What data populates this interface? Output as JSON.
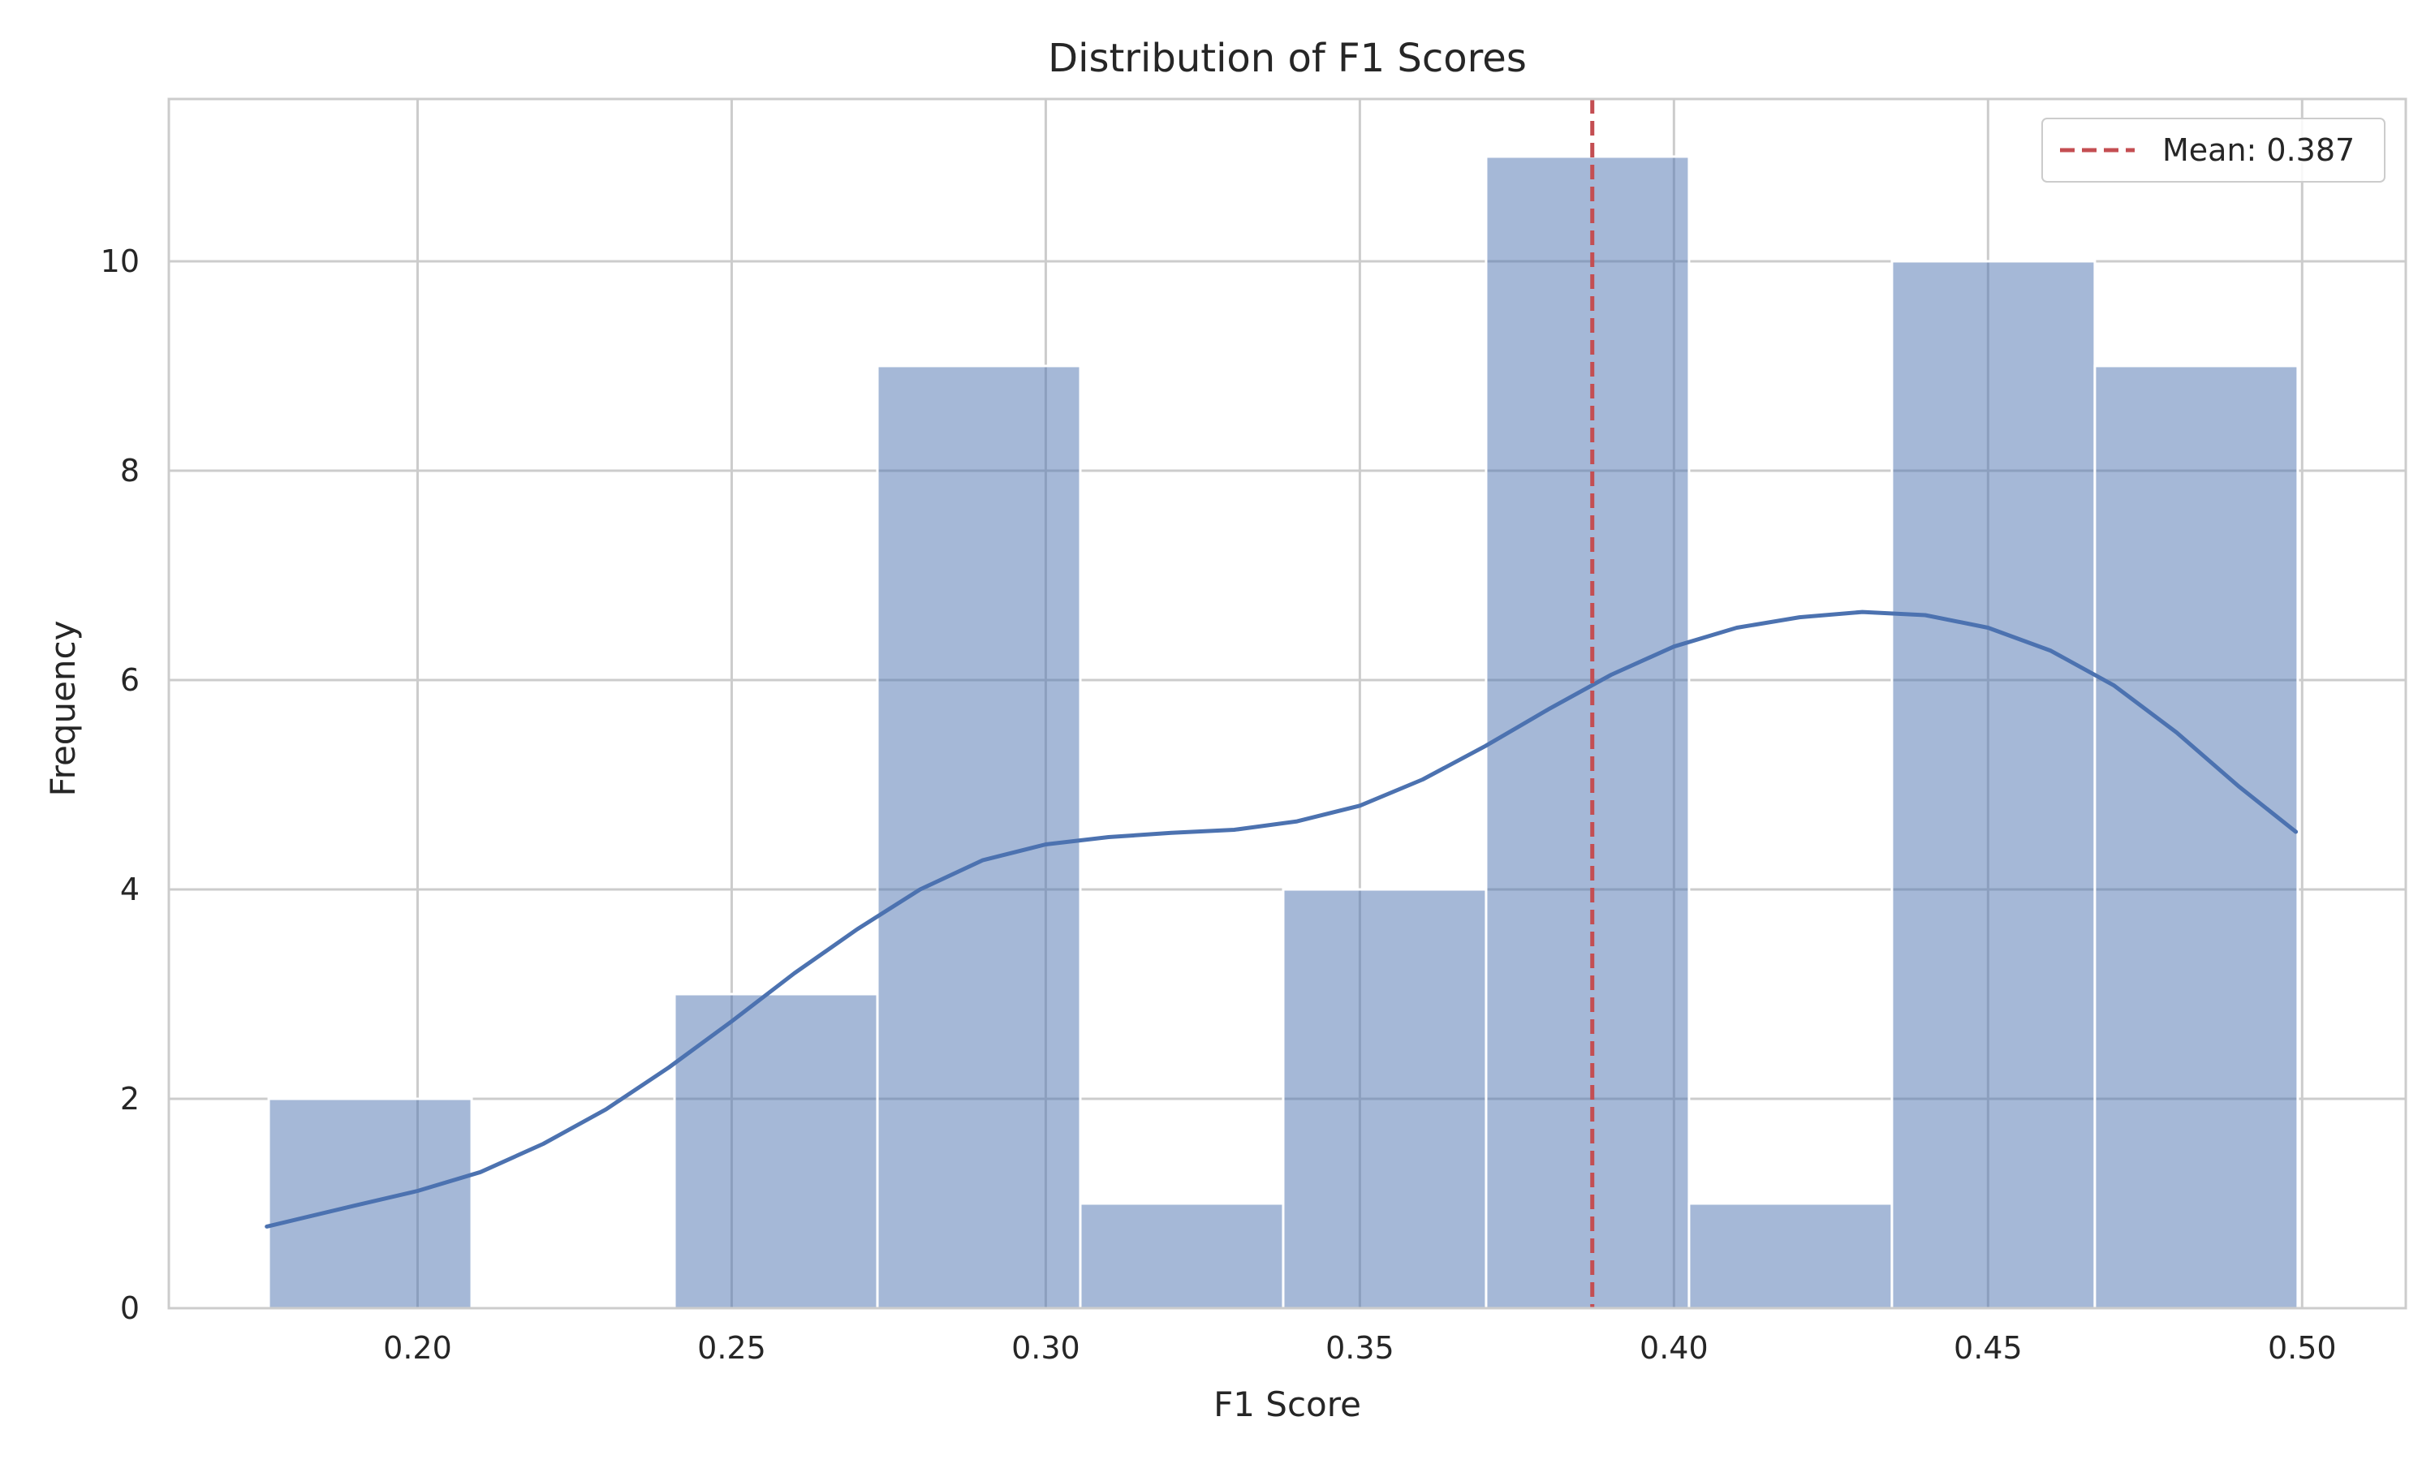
{
  "chart_data": {
    "type": "bar",
    "title": "Distribution of F1 Scores",
    "xlabel": "F1 Score",
    "ylabel": "Frequency",
    "xlim": [
      0.1604,
      0.5165
    ],
    "ylim": [
      0,
      11.55
    ],
    "xticks": [
      0.2,
      0.25,
      0.3,
      0.35,
      0.4,
      0.45,
      0.5
    ],
    "xtick_labels": [
      "0.20",
      "0.25",
      "0.30",
      "0.35",
      "0.40",
      "0.45",
      "0.50"
    ],
    "yticks": [
      0,
      2,
      4,
      6,
      8,
      10
    ],
    "ytick_labels": [
      "0",
      "2",
      "4",
      "6",
      "8",
      "10"
    ],
    "grid": true,
    "bins": [
      {
        "x0": 0.1763,
        "x1": 0.2086,
        "count": 2
      },
      {
        "x0": 0.2086,
        "x1": 0.2409,
        "count": 0
      },
      {
        "x0": 0.2409,
        "x1": 0.2732,
        "count": 3
      },
      {
        "x0": 0.2732,
        "x1": 0.3055,
        "count": 9
      },
      {
        "x0": 0.3055,
        "x1": 0.3378,
        "count": 1
      },
      {
        "x0": 0.3378,
        "x1": 0.3701,
        "count": 4
      },
      {
        "x0": 0.3701,
        "x1": 0.4024,
        "count": 11
      },
      {
        "x0": 0.4024,
        "x1": 0.4347,
        "count": 1
      },
      {
        "x0": 0.4347,
        "x1": 0.467,
        "count": 10
      },
      {
        "x0": 0.467,
        "x1": 0.4993,
        "count": 9
      }
    ],
    "kde": {
      "x": [
        0.176,
        0.19,
        0.2,
        0.21,
        0.22,
        0.23,
        0.24,
        0.25,
        0.26,
        0.27,
        0.28,
        0.29,
        0.3,
        0.31,
        0.32,
        0.33,
        0.34,
        0.35,
        0.36,
        0.37,
        0.38,
        0.39,
        0.4,
        0.41,
        0.42,
        0.43,
        0.44,
        0.45,
        0.46,
        0.47,
        0.48,
        0.49,
        0.499
      ],
      "y": [
        0.78,
        0.98,
        1.12,
        1.3,
        1.57,
        1.9,
        2.3,
        2.74,
        3.2,
        3.62,
        4.0,
        4.28,
        4.43,
        4.5,
        4.54,
        4.57,
        4.65,
        4.8,
        5.05,
        5.37,
        5.72,
        6.05,
        6.32,
        6.5,
        6.6,
        6.65,
        6.62,
        6.5,
        6.28,
        5.95,
        5.5,
        4.98,
        4.55
      ],
      "color": "#4c72b0"
    },
    "bar_color": "#4c72b0",
    "mean": {
      "value": 0.387,
      "label": "Mean: 0.387",
      "color": "#c44e52"
    },
    "legend": {
      "placement": "top-right",
      "entries": [
        "Mean: 0.387"
      ]
    }
  }
}
